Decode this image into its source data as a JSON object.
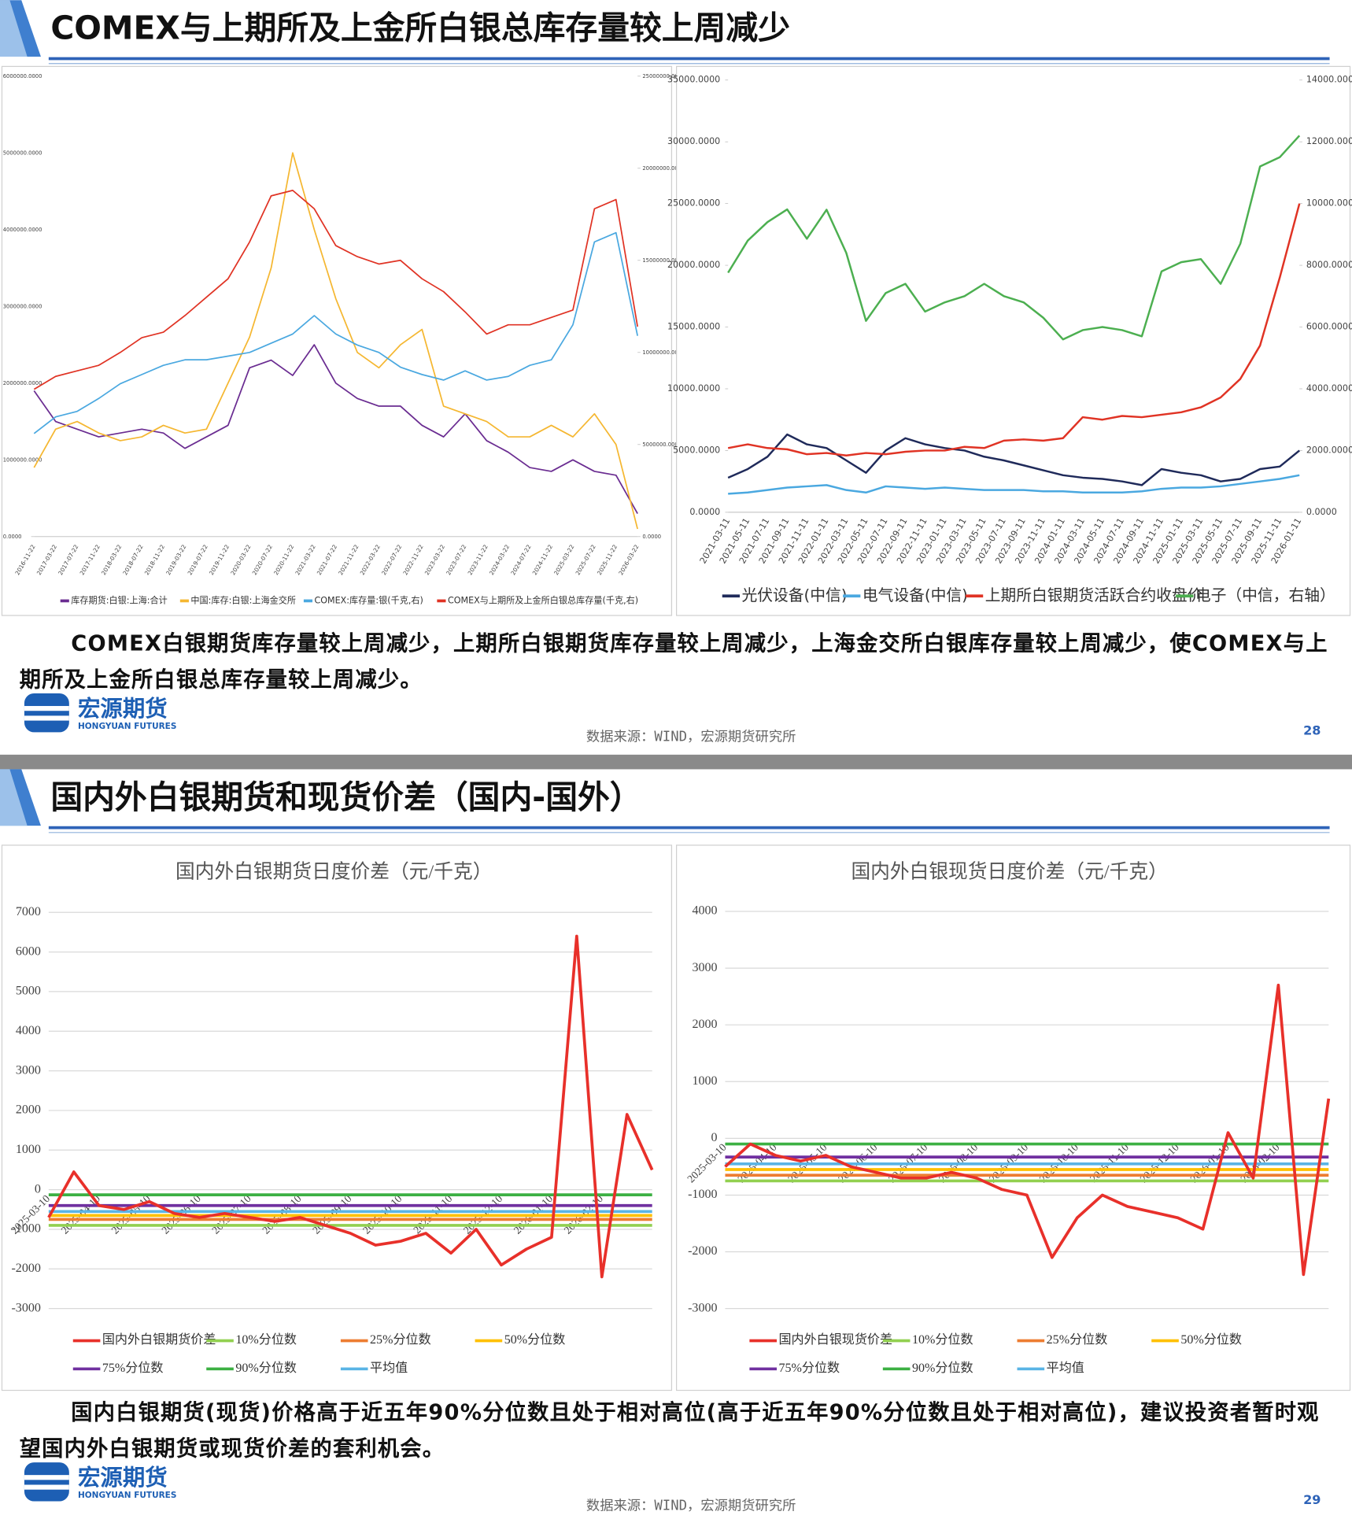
{
  "slides": [
    {
      "title": "COMEX与上期所及上金所白银总库存量较上周减少",
      "charts": [
        {
          "type": "line",
          "categories": [
            "2016-11-22",
            "2017-03-22",
            "2017-07-22",
            "2017-11-22",
            "2018-03-22",
            "2018-07-22",
            "2018-11-22",
            "2019-03-22",
            "2019-07-22",
            "2019-11-22",
            "2020-03-22",
            "2020-07-22",
            "2020-11-22",
            "2021-03-22",
            "2021-07-22",
            "2021-11-22",
            "2022-03-22",
            "2022-07-22",
            "2022-11-22",
            "2023-03-22",
            "2023-07-22",
            "2023-11-22",
            "2024-03-22",
            "2024-07-22",
            "2024-11-22",
            "2025-03-22",
            "2025-07-22",
            "2025-11-22",
            "2026-03-22"
          ],
          "ylim": [
            0,
            6000000
          ],
          "yticks": [
            {
              "value": 0,
              "label": "0.0000"
            },
            {
              "value": 1000000,
              "label": "1000000.0000"
            },
            {
              "value": 2000000,
              "label": "2000000.0000"
            },
            {
              "value": 3000000,
              "label": "3000000.0000"
            },
            {
              "value": 4000000,
              "label": "4000000.0000"
            },
            {
              "value": 5000000,
              "label": "5000000.0000"
            },
            {
              "value": 6000000,
              "label": "6000000.0000"
            }
          ],
          "y2lim": [
            0,
            25000000
          ],
          "y2ticks": [
            {
              "value": 0,
              "label": "0.0000"
            },
            {
              "value": 5000000,
              "label": "5000000.0000"
            },
            {
              "value": 10000000,
              "label": "10000000.0000"
            },
            {
              "value": 15000000,
              "label": "15000000.0000"
            },
            {
              "value": 20000000,
              "label": "20000000.0000"
            },
            {
              "value": 25000000,
              "label": "25000000.0000"
            }
          ],
          "grid": false,
          "series": [
            {
              "name": "库存期货:白银:上海:合计",
              "color": "#6a2c91",
              "values": [
                1900000,
                1500000,
                1400000,
                1300000,
                1350000,
                1400000,
                1350000,
                1150000,
                1300000,
                1450000,
                2200000,
                2300000,
                2100000,
                2500000,
                2000000,
                1800000,
                1700000,
                1700000,
                1450000,
                1300000,
                1600000,
                1250000,
                1100000,
                900000,
                850000,
                1000000,
                850000,
                800000,
                300000
              ]
            },
            {
              "name": "中国:库存:白银:上海金交所",
              "color": "#f5b731",
              "values": [
                900000,
                1400000,
                1500000,
                1350000,
                1250000,
                1300000,
                1450000,
                1350000,
                1400000,
                2000000,
                2600000,
                3500000,
                5000000,
                4000000,
                3100000,
                2400000,
                2200000,
                2500000,
                2700000,
                1700000,
                1600000,
                1500000,
                1300000,
                1300000,
                1450000,
                1300000,
                1600000,
                1200000,
                100000
              ]
            },
            {
              "name": "COMEX:库存量:银(千克,右)",
              "color": "#4aa8e0",
              "axis": "y2",
              "values": [
                5600000,
                6500000,
                6800000,
                7500000,
                8300000,
                8800000,
                9300000,
                9600000,
                9600000,
                9800000,
                10000000,
                10500000,
                11000000,
                12000000,
                11000000,
                10400000,
                10000000,
                9200000,
                8800000,
                8500000,
                9000000,
                8500000,
                8700000,
                9300000,
                9600000,
                11500000,
                16000000,
                16500000,
                10900000
              ]
            },
            {
              "name": "COMEX与上期所及上金所白银总库存量(千克,右)",
              "color": "#e03324",
              "axis": "y2",
              "values": [
                8000000,
                8700000,
                9000000,
                9300000,
                10000000,
                10800000,
                11100000,
                12000000,
                13000000,
                14000000,
                16000000,
                18500000,
                18800000,
                17800000,
                15800000,
                15200000,
                14800000,
                15000000,
                14000000,
                13300000,
                12200000,
                11000000,
                11500000,
                11500000,
                11900000,
                12300000,
                17800000,
                18300000,
                11400000
              ]
            }
          ]
        },
        {
          "type": "line",
          "categories": [
            "2021-03-11",
            "2021-05-11",
            "2021-07-11",
            "2021-09-11",
            "2021-11-11",
            "2022-01-11",
            "2022-03-11",
            "2022-05-11",
            "2022-07-11",
            "2022-09-11",
            "2022-11-11",
            "2023-01-11",
            "2023-03-11",
            "2023-05-11",
            "2023-07-11",
            "2023-09-11",
            "2023-11-11",
            "2024-01-11",
            "2024-03-11",
            "2024-05-11",
            "2024-07-11",
            "2024-09-11",
            "2024-11-11",
            "2025-01-11",
            "2025-03-11",
            "2025-05-11",
            "2025-07-11",
            "2025-09-11",
            "2025-11-11",
            "2026-01-11"
          ],
          "ylim": [
            0,
            35000
          ],
          "yticks": [
            {
              "value": 0,
              "label": "0.0000"
            },
            {
              "value": 5000,
              "label": "5000.0000"
            },
            {
              "value": 10000,
              "label": "10000.0000"
            },
            {
              "value": 15000,
              "label": "15000.0000"
            },
            {
              "value": 20000,
              "label": "20000.0000"
            },
            {
              "value": 25000,
              "label": "25000.0000"
            },
            {
              "value": 30000,
              "label": "30000.0000"
            },
            {
              "value": 35000,
              "label": "35000.0000"
            }
          ],
          "y2lim": [
            0,
            14000
          ],
          "y2ticks": [
            {
              "value": 0,
              "label": "0.0000"
            },
            {
              "value": 2000,
              "label": "2000.0000"
            },
            {
              "value": 4000,
              "label": "4000.0000"
            },
            {
              "value": 6000,
              "label": "6000.0000"
            },
            {
              "value": 8000,
              "label": "8000.0000"
            },
            {
              "value": 10000,
              "label": "10000.0000"
            },
            {
              "value": 12000,
              "label": "12000.0000"
            },
            {
              "value": 14000,
              "label": "14000.0000"
            }
          ],
          "grid": false,
          "series": [
            {
              "name": "光伏设备(中信)",
              "color": "#1f2a5a",
              "values": [
                2800,
                3500,
                4500,
                6300,
                5500,
                5200,
                4200,
                3200,
                5000,
                6000,
                5500,
                5200,
                5000,
                4500,
                4200,
                3800,
                3400,
                3000,
                2800,
                2700,
                2500,
                2200,
                3500,
                3200,
                3000,
                2500,
                2700,
                3500,
                3700,
                5000
              ]
            },
            {
              "name": "电气设备(中信)",
              "color": "#4aa8e0",
              "values": [
                1500,
                1600,
                1800,
                2000,
                2100,
                2200,
                1800,
                1600,
                2100,
                2000,
                1900,
                2000,
                1900,
                1800,
                1800,
                1800,
                1700,
                1700,
                1600,
                1600,
                1600,
                1700,
                1900,
                2000,
                2000,
                2100,
                2300,
                2500,
                2700,
                3000
              ]
            },
            {
              "name": "上期所白银期货活跃合约收盘价",
              "color": "#e03324",
              "values": [
                5200,
                5500,
                5200,
                5100,
                4700,
                4800,
                4600,
                4800,
                4700,
                4900,
                5000,
                5000,
                5300,
                5200,
                5800,
                5900,
                5800,
                6000,
                7700,
                7500,
                7800,
                7700,
                7900,
                8100,
                8500,
                9300,
                10800,
                13500,
                19000,
                25000
              ]
            },
            {
              "name": "电子（中信，右轴）",
              "color": "#4caf50",
              "axis": "y2",
              "values": [
                7760,
                8800,
                9400,
                9810,
                8860,
                9800,
                8400,
                6200,
                7100,
                7400,
                6500,
                6800,
                7000,
                7400,
                7000,
                6800,
                6300,
                5600,
                5900,
                6000,
                5900,
                5700,
                7800,
                8100,
                8200,
                7400,
                8700,
                11200,
                11500,
                12200
              ]
            }
          ]
        }
      ],
      "text": "COMEX白银期货库存量较上周减少，上期所白银期货库存量较上周减少，上海金交所白银库存量较上周减少，使COMEX与上期所及上金所白银总库存量较上周减少。",
      "logo": {
        "name": "宏源期货",
        "english": "HONGYUAN FUTURES"
      },
      "source": "数据来源：WIND，宏源期货研究所",
      "page": "28"
    },
    {
      "title": "国内外白银期货和现货价差（国内-国外）",
      "charts": [
        {
          "type": "line",
          "title": "国内外白银期货日度价差（元/千克）",
          "categories": [
            "2025-03-10",
            null,
            "2025-04-10",
            null,
            "2025-05-10",
            null,
            "2025-06-10",
            null,
            "2025-07-10",
            null,
            "2025-08-10",
            null,
            "2025-09-10",
            null,
            "2025-10-10",
            null,
            "2025-11-10",
            null,
            "2025-12-10",
            null,
            "2026-01-10",
            null,
            "2026-02-10",
            null,
            null
          ],
          "ylim": [
            -3000,
            7000
          ],
          "yticks": [
            -3000,
            -2000,
            -1000,
            0,
            1000,
            2000,
            3000,
            4000,
            5000,
            6000,
            7000
          ],
          "grid": true,
          "series": [
            {
              "name": "国内外白银期货价差",
              "color": "#e8302a",
              "values": [
                -700,
                450,
                -400,
                -500,
                -300,
                -600,
                -700,
                -600,
                -700,
                -800,
                -700,
                -900,
                -1100,
                -1400,
                -1300,
                -1100,
                -1600,
                -1000,
                -1900,
                -1500,
                -1200,
                6400,
                -2200,
                1900,
                500
              ]
            },
            {
              "name": "10%分位数",
              "color": "#92d050",
              "value": -900
            },
            {
              "name": "25%分位数",
              "color": "#ed7d31",
              "value": -750
            },
            {
              "name": "50%分位数",
              "color": "#ffc000",
              "value": -650
            },
            {
              "name": "75%分位数",
              "color": "#7030a0",
              "value": -400
            },
            {
              "name": "90%分位数",
              "color": "#3cb043",
              "value": -130
            },
            {
              "name": "平均值",
              "color": "#5ab4e5",
              "value": -550
            }
          ]
        },
        {
          "type": "line",
          "title": "国内外白银现货日度价差（元/千克）",
          "categories": [
            "2025-03-10",
            null,
            "2025-04-10",
            null,
            "2025-05-10",
            null,
            "2025-06-10",
            null,
            "2025-07-10",
            null,
            "2025-08-10",
            null,
            "2025-09-10",
            null,
            "2025-10-10",
            null,
            "2025-11-10",
            null,
            "2025-12-10",
            null,
            "2026-01-10",
            null,
            "2026-02-10",
            null,
            null
          ],
          "ylim": [
            -3000,
            4000
          ],
          "yticks": [
            -3000,
            -2000,
            -1000,
            0,
            1000,
            2000,
            3000,
            4000
          ],
          "grid": true,
          "series": [
            {
              "name": "国内外白银现货价差",
              "color": "#e8302a",
              "values": [
                -500,
                -100,
                -300,
                -400,
                -300,
                -500,
                -600,
                -700,
                -700,
                -600,
                -700,
                -900,
                -1000,
                -2100,
                -1400,
                -1000,
                -1200,
                -1300,
                -1400,
                -1600,
                100,
                -700,
                2700,
                -2400,
                700
              ]
            },
            {
              "name": "10%分位数",
              "color": "#92d050",
              "value": -750
            },
            {
              "name": "25%分位数",
              "color": "#ed7d31",
              "value": -650
            },
            {
              "name": "50%分位数",
              "color": "#ffc000",
              "value": -550
            },
            {
              "name": "75%分位数",
              "color": "#7030a0",
              "value": -330
            },
            {
              "name": "90%分位数",
              "color": "#3cb043",
              "value": -100
            },
            {
              "name": "平均值",
              "color": "#5ab4e5",
              "value": -450
            }
          ]
        }
      ],
      "text": "国内白银期货(现货)价格高于近五年90%分位数且处于相对高位(高于近五年90%分位数且处于相对高位)，建议投资者暂时观望国内外白银期货或现货价差的套利机会。",
      "logo": {
        "name": "宏源期货",
        "english": "HONGYUAN FUTURES"
      },
      "source": "数据来源：WIND，宏源期货研究所",
      "page": "29"
    }
  ]
}
